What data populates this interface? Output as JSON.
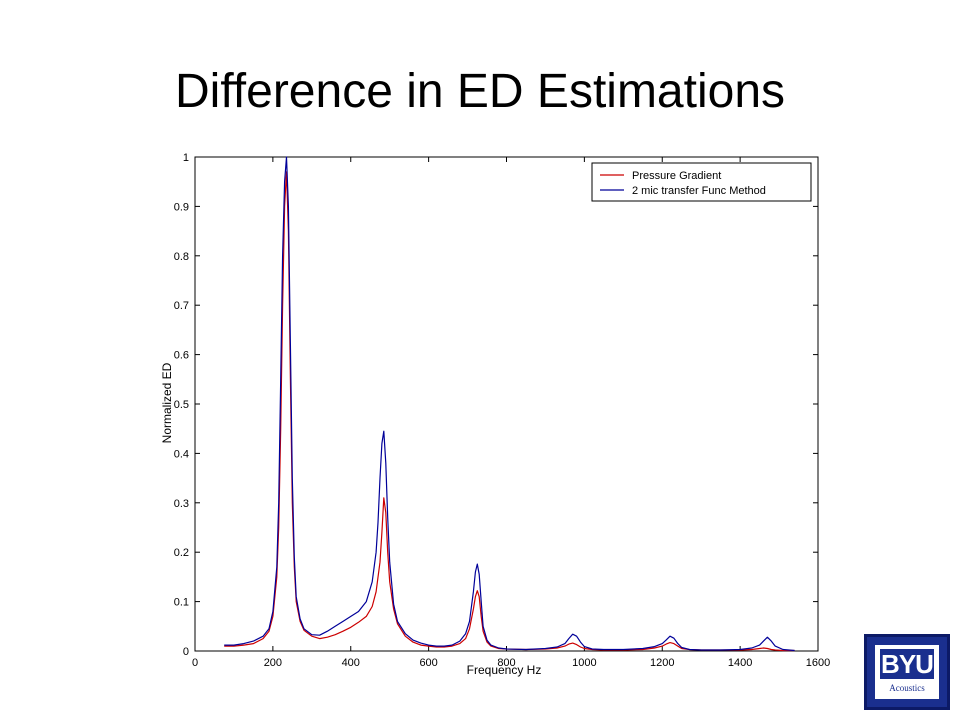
{
  "slide": {
    "title": "Difference in ED Estimations"
  },
  "logo": {
    "mark": "BYU",
    "subtitle": "Acoustics",
    "color": "#1a2f8e"
  },
  "chart_data": {
    "type": "line",
    "title": "",
    "xlabel": "Frequency Hz",
    "ylabel": "Normalized ED",
    "xlim": [
      0,
      1600
    ],
    "ylim": [
      0,
      1
    ],
    "xticks": [
      0,
      200,
      400,
      600,
      800,
      1000,
      1200,
      1400,
      1600
    ],
    "yticks": [
      0,
      0.1,
      0.2,
      0.3,
      0.4,
      0.5,
      0.6,
      0.7,
      0.8,
      0.9,
      1
    ],
    "grid": false,
    "legend_position": "top-right",
    "series": [
      {
        "name": "Pressure Gradient",
        "color": "#cc0000",
        "x": [
          75,
          100,
          125,
          150,
          175,
          190,
          200,
          210,
          215,
          220,
          225,
          230,
          235,
          240,
          245,
          250,
          255,
          260,
          270,
          280,
          300,
          320,
          340,
          360,
          380,
          400,
          420,
          440,
          455,
          465,
          475,
          480,
          485,
          490,
          495,
          500,
          510,
          520,
          540,
          560,
          580,
          600,
          620,
          640,
          660,
          680,
          695,
          705,
          715,
          720,
          725,
          730,
          735,
          740,
          750,
          760,
          780,
          800,
          850,
          900,
          930,
          950,
          960,
          970,
          980,
          990,
          1000,
          1020,
          1050,
          1100,
          1150,
          1180,
          1200,
          1210,
          1220,
          1230,
          1240,
          1250,
          1270,
          1300,
          1350,
          1400,
          1430,
          1450,
          1460,
          1470,
          1480,
          1490,
          1510,
          1540
        ],
        "y": [
          0.01,
          0.01,
          0.012,
          0.015,
          0.025,
          0.04,
          0.07,
          0.15,
          0.25,
          0.45,
          0.7,
          0.9,
          0.97,
          0.85,
          0.55,
          0.3,
          0.17,
          0.1,
          0.06,
          0.042,
          0.03,
          0.025,
          0.028,
          0.033,
          0.04,
          0.048,
          0.058,
          0.07,
          0.09,
          0.12,
          0.18,
          0.24,
          0.31,
          0.28,
          0.2,
          0.14,
          0.085,
          0.055,
          0.03,
          0.018,
          0.012,
          0.01,
          0.008,
          0.008,
          0.01,
          0.015,
          0.025,
          0.045,
          0.085,
          0.11,
          0.122,
          0.11,
          0.07,
          0.04,
          0.018,
          0.01,
          0.005,
          0.004,
          0.003,
          0.004,
          0.006,
          0.01,
          0.014,
          0.016,
          0.013,
          0.008,
          0.005,
          0.003,
          0.002,
          0.002,
          0.003,
          0.006,
          0.01,
          0.014,
          0.017,
          0.015,
          0.01,
          0.005,
          0.003,
          0.002,
          0.002,
          0.002,
          0.003,
          0.005,
          0.006,
          0.005,
          0.003,
          0.002,
          0.001,
          0.001
        ]
      },
      {
        "name": "2 mic transfer Func Method",
        "color": "#000099",
        "x": [
          75,
          100,
          125,
          150,
          175,
          190,
          200,
          210,
          215,
          220,
          225,
          230,
          235,
          240,
          245,
          250,
          255,
          260,
          270,
          280,
          300,
          320,
          340,
          360,
          380,
          400,
          420,
          440,
          455,
          465,
          470,
          475,
          480,
          485,
          490,
          495,
          500,
          510,
          520,
          540,
          560,
          580,
          600,
          620,
          640,
          660,
          680,
          695,
          705,
          715,
          720,
          725,
          730,
          735,
          740,
          750,
          760,
          780,
          800,
          850,
          900,
          930,
          950,
          960,
          970,
          980,
          990,
          1000,
          1020,
          1050,
          1100,
          1150,
          1180,
          1200,
          1210,
          1220,
          1230,
          1240,
          1250,
          1270,
          1300,
          1350,
          1400,
          1430,
          1450,
          1460,
          1470,
          1480,
          1490,
          1510,
          1540
        ],
        "y": [
          0.012,
          0.012,
          0.015,
          0.02,
          0.03,
          0.045,
          0.08,
          0.17,
          0.3,
          0.55,
          0.8,
          0.95,
          1.0,
          0.9,
          0.62,
          0.35,
          0.19,
          0.11,
          0.065,
          0.045,
          0.033,
          0.032,
          0.04,
          0.05,
          0.06,
          0.07,
          0.08,
          0.1,
          0.14,
          0.2,
          0.26,
          0.35,
          0.42,
          0.445,
          0.38,
          0.27,
          0.18,
          0.095,
          0.06,
          0.035,
          0.022,
          0.016,
          0.012,
          0.01,
          0.01,
          0.012,
          0.02,
          0.035,
          0.06,
          0.12,
          0.16,
          0.176,
          0.155,
          0.1,
          0.05,
          0.022,
          0.012,
          0.006,
          0.004,
          0.003,
          0.005,
          0.008,
          0.015,
          0.025,
          0.034,
          0.03,
          0.018,
          0.009,
          0.004,
          0.003,
          0.003,
          0.005,
          0.009,
          0.015,
          0.022,
          0.03,
          0.026,
          0.015,
          0.007,
          0.003,
          0.002,
          0.002,
          0.003,
          0.006,
          0.012,
          0.02,
          0.028,
          0.02,
          0.01,
          0.003,
          0.001
        ]
      }
    ]
  }
}
